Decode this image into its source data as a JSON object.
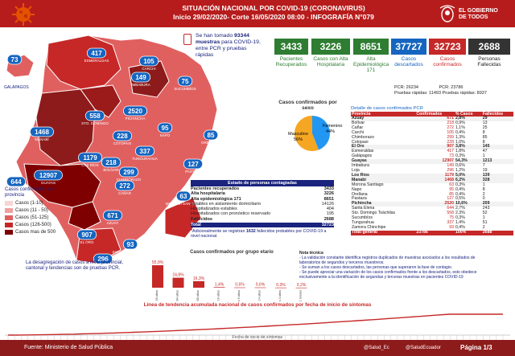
{
  "header": {
    "title": "SITUACIÓN NACIONAL POR COVID-19 (CORONAVIRUS)",
    "subtitle": "Inicio 29/02/2020- Corte 16/05/2020 08:00 - INFOGRAFÍA N°079",
    "logo_line1": "EL GOBIERNO",
    "logo_line2": "DE TODOS"
  },
  "tests": {
    "prefix": "Se han tomado",
    "number": "93344",
    "suffix": "muestras",
    "line2": "para COVID-19,",
    "line3": "entre PCR y pruebas",
    "line4": "rápidas"
  },
  "stats": {
    "recuperados": {
      "value": "3433",
      "label1": "Pacientes",
      "label2": "Recuperados"
    },
    "hospitalaria": {
      "value": "3226",
      "label1": "Casos con Alta",
      "label2": "Hospitalaria"
    },
    "epidemiologica": {
      "value": "8651",
      "label1": "Alta",
      "label2": "Epidemiológica",
      "label3": "171"
    },
    "descartados": {
      "value": "37727",
      "label1": "Casos",
      "label2": "descartados",
      "pcr_label": "PCR:",
      "pcr_value": "26234"
    },
    "confirmados": {
      "value": "32723",
      "label1": "Casos",
      "label2": "confirmados",
      "pcr_label": "PCR:",
      "pcr_value": "23786"
    },
    "fallecidos": {
      "value": "2688",
      "label1": "Personas",
      "label2": "Fallecidas"
    },
    "rapidas": {
      "label": "Pruebas rápidas:",
      "descartados": "11493",
      "confirmados": "8937"
    }
  },
  "map": {
    "galapagos_label": "GALÁPAGOS",
    "provinces": [
      {
        "name": "ESMERALDAS",
        "value": "417"
      },
      {
        "name": "CARCHI",
        "value": "105"
      },
      {
        "name": "IMBABURA",
        "value": "149"
      },
      {
        "name": "GALÁPAGOS",
        "value": "73"
      },
      {
        "name": "SUCUMBÍOS",
        "value": "75"
      },
      {
        "name": "PICHINCHA",
        "value": "2520"
      },
      {
        "name": "STO. DOMINGO",
        "value": "558"
      },
      {
        "name": "NAPO",
        "value": "95"
      },
      {
        "name": "MANABÍ",
        "value": "1468"
      },
      {
        "name": "COTOPAXI",
        "value": "228"
      },
      {
        "name": "ORELLANA",
        "value": "85"
      },
      {
        "name": "LOS RÍOS",
        "value": "1179"
      },
      {
        "name": "TUNGURAHUA",
        "value": "337"
      },
      {
        "name": "BOLÍVAR",
        "value": "218"
      },
      {
        "name": "CHIMBORAZO",
        "value": "299"
      },
      {
        "name": "PASTAZA",
        "value": "127"
      },
      {
        "name": "SANTA ELENA",
        "value": "644"
      },
      {
        "name": "GUAYAS",
        "value": "12907"
      },
      {
        "name": "CAÑAR",
        "value": "272"
      },
      {
        "name": "MORONA SANTIAGO",
        "value": "63"
      },
      {
        "name": "AZUAY",
        "value": "671"
      },
      {
        "name": "EL ORO",
        "value": "907"
      },
      {
        "name": "ZAMORA CHINCHIPE",
        "value": "93"
      },
      {
        "name": "LOJA",
        "value": "296"
      }
    ],
    "legend_title": "Casos confirmados por provincia",
    "legend": [
      "Casos (1-10)",
      "Casos (11 - 50)",
      "Casos (51-125)",
      "Casos (126-500)",
      "Casos mas de 500"
    ],
    "legend_colors": [
      "#f8d4d4",
      "#f0a0a0",
      "#e06060",
      "#c62828",
      "#7f0000"
    ],
    "note": "La desagregación de casos a nivel provincial, cantonal y tendencias son de pruebas PCR."
  },
  "sex_chart": {
    "title": "Casos confirmados por sexo",
    "masculino_label": "Masculino",
    "masculino_pct": "56%",
    "masculino_value": 56,
    "femenino_label": "Femenino",
    "femenino_pct": "44%",
    "femenino_value": 44
  },
  "province_table": {
    "title": "Detalle de casos confirmados PCR",
    "headers": [
      "Provincia",
      "Confirmados",
      "% Casos",
      "Fallecidos"
    ],
    "rows": [
      {
        "p": true,
        "name": "Azuay",
        "c": "671",
        "pct": "2,8%",
        "f": "29"
      },
      {
        "p": false,
        "name": "Bolívar",
        "c": "218",
        "pct": "0,9%",
        "f": "13"
      },
      {
        "p": false,
        "name": "Cañar",
        "c": "272",
        "pct": "1,1%",
        "f": "25"
      },
      {
        "p": false,
        "name": "Carchi",
        "c": "105",
        "pct": "0,4%",
        "f": "8"
      },
      {
        "p": false,
        "name": "Chimborazo",
        "c": "299",
        "pct": "1,3%",
        "f": "85"
      },
      {
        "p": false,
        "name": "Cotopaxi",
        "c": "228",
        "pct": "1,0%",
        "f": "8"
      },
      {
        "p": true,
        "name": "El Oro",
        "c": "907",
        "pct": "3,8%",
        "f": "145"
      },
      {
        "p": false,
        "name": "Esmeraldas",
        "c": "417",
        "pct": "1,8%",
        "f": "47"
      },
      {
        "p": false,
        "name": "Galápagos",
        "c": "73",
        "pct": "0,3%",
        "f": "1"
      },
      {
        "p": true,
        "name": "Guayas",
        "c": "12907",
        "pct": "54,3%",
        "f": "1213"
      },
      {
        "p": false,
        "name": "Imbabura",
        "c": "149",
        "pct": "0,6%",
        "f": "7"
      },
      {
        "p": false,
        "name": "Loja",
        "c": "296",
        "pct": "1,2%",
        "f": "19"
      },
      {
        "p": true,
        "name": "Los Ríos",
        "c": "1179",
        "pct": "5,0%",
        "f": "139"
      },
      {
        "p": true,
        "name": "Manabí",
        "c": "1468",
        "pct": "6,2%",
        "f": "328"
      },
      {
        "p": false,
        "name": "Morona Santiago",
        "c": "63",
        "pct": "0,3%",
        "f": "1"
      },
      {
        "p": false,
        "name": "Napo",
        "c": "95",
        "pct": "0,4%",
        "f": "8"
      },
      {
        "p": false,
        "name": "Orellana",
        "c": "85",
        "pct": "0,4%",
        "f": "2"
      },
      {
        "p": false,
        "name": "Pastaza",
        "c": "127",
        "pct": "0,5%",
        "f": "0"
      },
      {
        "p": true,
        "name": "Pichincha",
        "c": "2520",
        "pct": "10,6%",
        "f": "209"
      },
      {
        "p": false,
        "name": "Santa Elena",
        "c": "644",
        "pct": "2,7%",
        "f": "243"
      },
      {
        "p": false,
        "name": "Sto. Domingo Tsáchilas",
        "c": "558",
        "pct": "2,3%",
        "f": "52"
      },
      {
        "p": false,
        "name": "Sucumbíos",
        "c": "75",
        "pct": "0,3%",
        "f": "1"
      },
      {
        "p": false,
        "name": "Tungurahua",
        "c": "337",
        "pct": "1,4%",
        "f": "51"
      },
      {
        "p": false,
        "name": "Zamora Chinchipe",
        "c": "93",
        "pct": "0,4%",
        "f": "2"
      }
    ],
    "total": {
      "name": "Total general",
      "c": "23786",
      "pct": "100%",
      "f": "2688"
    }
  },
  "states": {
    "title": "Estado de personas contagiadas",
    "rows": [
      {
        "label": "Pacientes recuperados",
        "value": "3433",
        "bold": true
      },
      {
        "label": "Alta hospitalaria",
        "value": "3226",
        "bold": true
      },
      {
        "label": "Alta epidemiológica 171",
        "value": "8651",
        "bold": true
      },
      {
        "label": "Estables en aislamiento domiciliario",
        "value": "14126",
        "bold": false
      },
      {
        "label": "Hospitalizados estables",
        "value": "404",
        "bold": false
      },
      {
        "label": "Hospitalizados con pronóstico reservado",
        "value": "195",
        "bold": false
      },
      {
        "label": "Fallecidos",
        "value": "2688",
        "bold": true
      }
    ],
    "total_label": "Total",
    "total_value": "32723",
    "note1": "*Adicionalmente se registran",
    "note_num": "1632",
    "note2": "fallecidos probables por COVID-19 a nivel nacional."
  },
  "age_chart": {
    "title": "Casos confirmados por grupo etario",
    "categories": [
      "de 20 a 49 años",
      "de 50 a 64 años",
      "más de 65 años",
      "de 15 a 19 años",
      "de 5 a 9 años",
      "de 10 a 14 años",
      "de 1 a 4 años",
      "de 0 a 11 meses"
    ],
    "labels": [
      "55,9%",
      "24,8%",
      "16,3%",
      "1,4%",
      "0,6%",
      "0,6%",
      "0,3%",
      "0,2%"
    ],
    "values": [
      55.9,
      24.8,
      16.3,
      1.4,
      0.6,
      0.6,
      0.3,
      0.2
    ]
  },
  "technical_note": {
    "title": "Nota técnica",
    "lines": [
      "- La validación constante identifica registros duplicados de muestras asociados a los resultados de",
      "laboratorios de segundos y terceros muestreos.",
      "- Se suman a los casos descartados, las personas que superaron la fase de contagio.",
      "- Se puede apreciar una variación de los casos confirmados frente a los descartados, esto obedece",
      "exclusivamente a la identificación de segundas y terceras muestras en pacientes COVID-19"
    ]
  },
  "trend": {
    "title": "Línea de tendencia acumulada nacional de casos confirmados por fecha de inicio de síntomas",
    "xlabel": "Fecha de inicio de síntomas"
  },
  "footer": {
    "source_label": "Fuente:",
    "source": "Ministerio de Salud Pública",
    "handle1": "@Salud_Ec",
    "handle2": "@SaludEcuador",
    "page": "Página 1/3"
  }
}
